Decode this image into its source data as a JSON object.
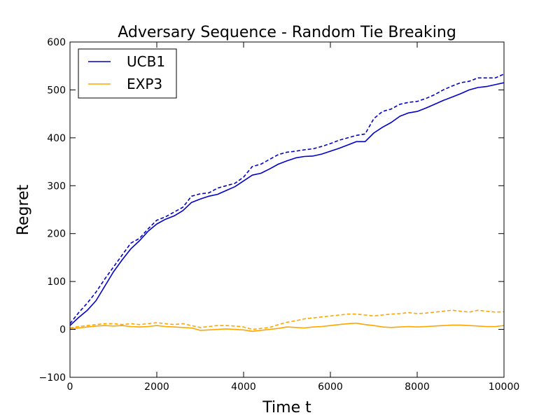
{
  "chart_data": {
    "type": "line",
    "title": "Adversary Sequence - Random Tie Breaking",
    "xlabel": "Time t",
    "ylabel": "Regret",
    "xlim": [
      0,
      10000
    ],
    "ylim": [
      -100,
      600
    ],
    "xticks": [
      "0",
      "2000",
      "4000",
      "6000",
      "8000",
      "10000"
    ],
    "yticks": [
      "−100",
      "0",
      "100",
      "200",
      "300",
      "400",
      "500",
      "600"
    ],
    "xtick_values": [
      0,
      2000,
      4000,
      6000,
      8000,
      10000
    ],
    "ytick_values": [
      -100,
      0,
      100,
      200,
      300,
      400,
      500,
      600
    ],
    "grid": false,
    "legend": {
      "position": "top-left",
      "entries": [
        "UCB1",
        "EXP3"
      ]
    },
    "series": [
      {
        "name": "UCB1",
        "color": "#0000cc",
        "style": "solid",
        "x": [
          0,
          200,
          400,
          600,
          800,
          1000,
          1200,
          1400,
          1600,
          1800,
          2000,
          2200,
          2400,
          2600,
          2800,
          3000,
          3200,
          3400,
          3600,
          3800,
          4000,
          4200,
          4400,
          4600,
          4800,
          5000,
          5200,
          5400,
          5600,
          5800,
          6000,
          6200,
          6400,
          6600,
          6800,
          7000,
          7200,
          7400,
          7600,
          7800,
          8000,
          8200,
          8400,
          8600,
          8800,
          9000,
          9200,
          9400,
          9600,
          9800,
          10000
        ],
        "values": [
          8,
          25,
          40,
          60,
          90,
          120,
          145,
          168,
          185,
          205,
          220,
          230,
          237,
          248,
          265,
          272,
          278,
          282,
          290,
          298,
          310,
          322,
          326,
          335,
          345,
          352,
          358,
          361,
          362,
          366,
          372,
          378,
          385,
          392,
          392,
          410,
          422,
          432,
          445,
          452,
          455,
          462,
          470,
          478,
          485,
          492,
          500,
          505,
          507,
          511,
          515
        ]
      },
      {
        "name": "",
        "color": "#0000cc",
        "style": "dashed",
        "x": [
          0,
          200,
          400,
          600,
          800,
          1000,
          1200,
          1400,
          1600,
          1800,
          2000,
          2200,
          2400,
          2600,
          2800,
          3000,
          3200,
          3400,
          3600,
          3800,
          4000,
          4200,
          4400,
          4600,
          4800,
          5000,
          5200,
          5400,
          5600,
          5800,
          6000,
          6200,
          6400,
          6600,
          6800,
          7000,
          7200,
          7400,
          7600,
          7800,
          8000,
          8200,
          8400,
          8600,
          8800,
          9000,
          9200,
          9400,
          9600,
          9800,
          10000
        ],
        "values": [
          12,
          35,
          55,
          78,
          105,
          130,
          155,
          180,
          190,
          210,
          228,
          235,
          245,
          255,
          278,
          283,
          285,
          295,
          300,
          305,
          318,
          340,
          345,
          355,
          365,
          370,
          372,
          375,
          377,
          382,
          388,
          395,
          400,
          405,
          408,
          440,
          455,
          460,
          470,
          474,
          476,
          482,
          490,
          500,
          508,
          515,
          518,
          525,
          525,
          525,
          533
        ]
      },
      {
        "name": "EXP3",
        "color": "#ffa500",
        "style": "solid",
        "x": [
          0,
          200,
          400,
          600,
          800,
          1000,
          1200,
          1400,
          1600,
          1800,
          2000,
          2200,
          2400,
          2600,
          2800,
          3000,
          3200,
          3400,
          3600,
          3800,
          4000,
          4200,
          4400,
          4600,
          4800,
          5000,
          5200,
          5400,
          5600,
          5800,
          6000,
          6200,
          6400,
          6600,
          6800,
          7000,
          7200,
          7400,
          7600,
          7800,
          8000,
          8200,
          8400,
          8600,
          8800,
          9000,
          9200,
          9400,
          9600,
          9800,
          10000
        ],
        "values": [
          1,
          3,
          5,
          7,
          8,
          7,
          8,
          6,
          5,
          6,
          8,
          6,
          5,
          4,
          3,
          -2,
          -1,
          0,
          1,
          0,
          -1,
          -4,
          -2,
          0,
          2,
          5,
          4,
          3,
          5,
          6,
          8,
          10,
          12,
          13,
          10,
          8,
          5,
          4,
          5,
          6,
          5,
          6,
          7,
          8,
          9,
          9,
          8,
          7,
          6,
          6,
          8
        ]
      },
      {
        "name": "",
        "color": "#ffa500",
        "style": "dashed",
        "x": [
          0,
          200,
          400,
          600,
          800,
          1000,
          1200,
          1400,
          1600,
          1800,
          2000,
          2200,
          2400,
          2600,
          2800,
          3000,
          3200,
          3400,
          3600,
          3800,
          4000,
          4200,
          4400,
          4600,
          4800,
          5000,
          5200,
          5400,
          5600,
          5800,
          6000,
          6200,
          6400,
          6600,
          6800,
          7000,
          7200,
          7400,
          7600,
          7800,
          8000,
          8200,
          8400,
          8600,
          8800,
          9000,
          9200,
          9400,
          9600,
          9800,
          10000
        ],
        "values": [
          3,
          6,
          8,
          10,
          12,
          12,
          10,
          12,
          10,
          12,
          14,
          12,
          10,
          12,
          8,
          4,
          6,
          8,
          8,
          7,
          5,
          0,
          2,
          4,
          10,
          15,
          18,
          22,
          24,
          26,
          28,
          30,
          32,
          32,
          30,
          28,
          30,
          32,
          33,
          35,
          33,
          34,
          36,
          38,
          40,
          38,
          36,
          40,
          38,
          36,
          37
        ]
      }
    ]
  }
}
